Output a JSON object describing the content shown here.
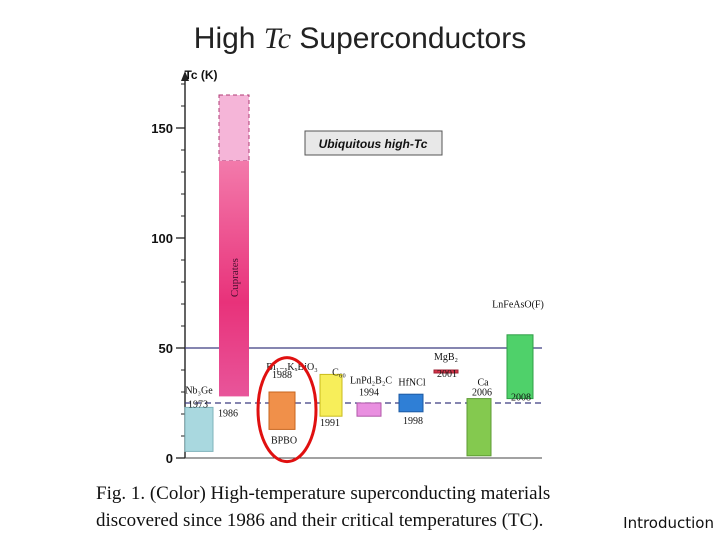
{
  "slide": {
    "title_prefix": "High ",
    "title_symbol": "Tc",
    "title_suffix": " Superconductors",
    "caption_line1": "Fig. 1.    (Color) High-temperature superconducting materials",
    "caption_line2": "discovered since 1986 and their critical temperatures (TC).",
    "footer": "Introduction"
  },
  "chart_data": {
    "type": "bar",
    "ylabel": "Tc (K)",
    "ylim": [
      0,
      175
    ],
    "yticks": [
      0,
      50,
      100,
      150
    ],
    "annotation": "Ubiquitous high-Tc",
    "reference_lines": [
      {
        "value": 50
      },
      {
        "value": 25
      }
    ],
    "materials": [
      {
        "name": "Nb3Ge",
        "year": "1973",
        "low": 3,
        "high": 23,
        "color": "#a9d8df"
      },
      {
        "name": "Cuprates",
        "year": "1986",
        "low": 28,
        "high": 135,
        "extended_high": 165,
        "color": "#e8327a",
        "extended_color": "#f5b5d8"
      },
      {
        "name": "Bi1-xKxBiO3",
        "year": "1988",
        "low": 13,
        "high": 30,
        "color": "#f0904a"
      },
      {
        "name": "BPBO",
        "year": "",
        "low": 13,
        "high": 13,
        "color": "#f0904a"
      },
      {
        "name": "C60",
        "year": "1991",
        "low": 19,
        "high": 38,
        "color": "#f7ee5a"
      },
      {
        "name": "LnPd2B2C",
        "year": "1994",
        "low": 19,
        "high": 25,
        "color": "#e98fe0"
      },
      {
        "name": "HfNCl",
        "year": "1998",
        "low": 21,
        "high": 29,
        "color": "#2f7fd6"
      },
      {
        "name": "MgB2",
        "year": "2001",
        "low": 39,
        "high": 40,
        "color": "#d8344a"
      },
      {
        "name": "Ca",
        "year": "2006",
        "low": 1,
        "high": 27,
        "color": "#84c94f"
      },
      {
        "name": "LnFeAsO(F)",
        "year": "2008",
        "low": 27,
        "high": 56,
        "color": "#4fd16a"
      }
    ],
    "highlight": {
      "material": "Bi1-xKxBiO3",
      "color": "#e01010"
    }
  }
}
